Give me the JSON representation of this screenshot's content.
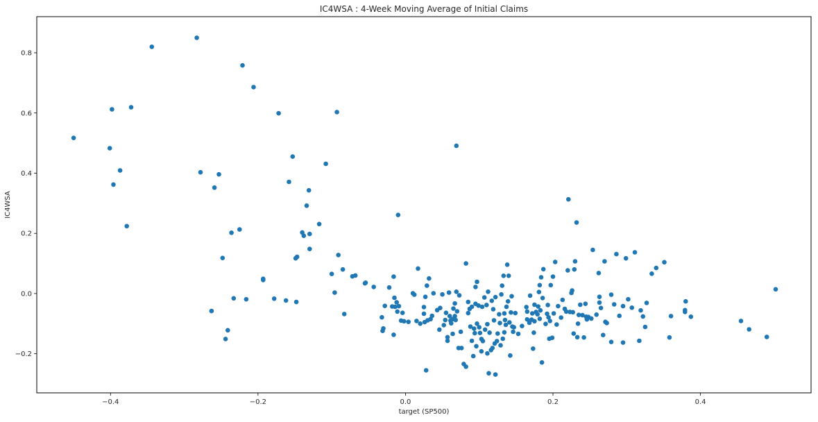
{
  "chart_data": {
    "type": "scatter",
    "title": "IC4WSA :  4-Week Moving Average of Initial Claims",
    "xlabel": "target (SP500)",
    "ylabel": "IC4WSA",
    "xlim": [
      -0.5,
      0.55
    ],
    "ylim": [
      -0.33,
      0.92
    ],
    "x_ticks": [
      -0.4,
      -0.2,
      0.0,
      0.2,
      0.4
    ],
    "x_tick_labels": [
      "−0.4",
      "−0.2",
      "0.0",
      "0.2",
      "0.4"
    ],
    "y_ticks": [
      -0.2,
      0.0,
      0.2,
      0.4,
      0.6,
      0.8
    ],
    "y_tick_labels": [
      "−0.2",
      "0.0",
      "0.2",
      "0.4",
      "0.6",
      "0.8"
    ],
    "grid": false,
    "legend": "none",
    "marker_color": "#1f77b4",
    "points": [
      [
        -0.45,
        0.517
      ],
      [
        -0.401,
        0.483
      ],
      [
        -0.398,
        0.612
      ],
      [
        -0.396,
        0.362
      ],
      [
        -0.387,
        0.409
      ],
      [
        -0.378,
        0.224
      ],
      [
        -0.372,
        0.619
      ],
      [
        -0.344,
        0.82
      ],
      [
        -0.283,
        0.85
      ],
      [
        -0.278,
        0.403
      ],
      [
        -0.259,
        0.352
      ],
      [
        -0.253,
        0.396
      ],
      [
        -0.248,
        0.118
      ],
      [
        -0.244,
        -0.151
      ],
      [
        -0.241,
        -0.122
      ],
      [
        -0.236,
        0.202
      ],
      [
        -0.233,
        -0.016
      ],
      [
        -0.263,
        -0.058
      ],
      [
        -0.225,
        0.213
      ],
      [
        -0.221,
        0.758
      ],
      [
        -0.216,
        -0.019
      ],
      [
        -0.206,
        0.686
      ],
      [
        -0.193,
        0.049
      ],
      [
        -0.193,
        0.045
      ],
      [
        -0.178,
        -0.017
      ],
      [
        -0.172,
        0.599
      ],
      [
        -0.162,
        -0.023
      ],
      [
        -0.158,
        0.371
      ],
      [
        -0.153,
        0.455
      ],
      [
        -0.149,
        0.117
      ],
      [
        -0.147,
        0.122
      ],
      [
        -0.148,
        -0.028
      ],
      [
        -0.14,
        0.203
      ],
      [
        -0.138,
        0.192
      ],
      [
        -0.134,
        0.292
      ],
      [
        -0.131,
        0.343
      ],
      [
        -0.13,
        0.198
      ],
      [
        -0.13,
        0.148
      ],
      [
        -0.117,
        0.231
      ],
      [
        -0.108,
        0.431
      ],
      [
        -0.1,
        0.065
      ],
      [
        -0.096,
        0.003
      ],
      [
        -0.093,
        0.603
      ],
      [
        -0.091,
        0.128
      ],
      [
        -0.085,
        0.08
      ],
      [
        -0.083,
        -0.068
      ],
      [
        -0.072,
        0.057
      ],
      [
        -0.068,
        0.06
      ],
      [
        -0.055,
        0.034
      ],
      [
        -0.054,
        0.036
      ],
      [
        -0.043,
        0.022
      ],
      [
        -0.032,
        -0.079
      ],
      [
        -0.03,
        -0.116
      ],
      [
        -0.031,
        -0.124
      ],
      [
        -0.028,
        -0.041
      ],
      [
        -0.022,
        0.02
      ],
      [
        -0.018,
        -0.043
      ],
      [
        -0.016,
        0.056
      ],
      [
        -0.016,
        -0.137
      ],
      [
        -0.015,
        -0.014
      ],
      [
        -0.014,
        -0.044
      ],
      [
        -0.012,
        -0.029
      ],
      [
        -0.011,
        -0.06
      ],
      [
        -0.01,
        0.261
      ],
      [
        -0.009,
        -0.042
      ],
      [
        -0.006,
        -0.09
      ],
      [
        -0.004,
        -0.064
      ],
      [
        -0.002,
        -0.092
      ],
      [
        0.004,
        -0.094
      ],
      [
        0.01,
        0.001
      ],
      [
        0.012,
        -0.004
      ],
      [
        0.015,
        -0.091
      ],
      [
        0.017,
        0.083
      ],
      [
        0.02,
        -0.1
      ],
      [
        0.025,
        -0.045
      ],
      [
        0.025,
        -0.067
      ],
      [
        0.026,
        -0.095
      ],
      [
        0.027,
        -0.011
      ],
      [
        0.029,
        0.026
      ],
      [
        0.028,
        -0.255
      ],
      [
        0.03,
        -0.089
      ],
      [
        0.032,
        0.05
      ],
      [
        0.034,
        -0.085
      ],
      [
        0.036,
        -0.074
      ],
      [
        0.038,
        0.001
      ],
      [
        0.043,
        -0.055
      ],
      [
        0.046,
        -0.12
      ],
      [
        0.047,
        -0.048
      ],
      [
        0.05,
        -0.003
      ],
      [
        0.052,
        -0.105
      ],
      [
        0.054,
        -0.088
      ],
      [
        0.055,
        -0.064
      ],
      [
        0.057,
        -0.157
      ],
      [
        0.057,
        -0.145
      ],
      [
        0.059,
        0.003
      ],
      [
        0.06,
        -0.075
      ],
      [
        0.061,
        -0.09
      ],
      [
        0.062,
        -0.099
      ],
      [
        0.064,
        -0.085
      ],
      [
        0.064,
        -0.134
      ],
      [
        0.065,
        -0.05
      ],
      [
        0.067,
        -0.033
      ],
      [
        0.067,
        -0.075
      ],
      [
        0.068,
        -0.088
      ],
      [
        0.069,
        0.006
      ],
      [
        0.069,
        0.491
      ],
      [
        0.07,
        -0.059
      ],
      [
        0.072,
        -0.181
      ],
      [
        0.073,
        -0.006
      ],
      [
        0.075,
        -0.127
      ],
      [
        0.076,
        -0.181
      ],
      [
        0.079,
        -0.234
      ],
      [
        0.082,
        -0.243
      ],
      [
        0.082,
        0.1
      ],
      [
        0.085,
        -0.028
      ],
      [
        0.085,
        -0.065
      ],
      [
        0.087,
        -0.051
      ],
      [
        0.088,
        -0.11
      ],
      [
        0.09,
        -0.157
      ],
      [
        0.09,
        -0.044
      ],
      [
        0.092,
        -0.208
      ],
      [
        0.093,
        -0.117
      ],
      [
        0.094,
        -0.132
      ],
      [
        0.095,
        -0.034
      ],
      [
        0.095,
        0.022
      ],
      [
        0.096,
        -0.175
      ],
      [
        0.097,
        0.039
      ],
      [
        0.097,
        -0.1
      ],
      [
        0.099,
        -0.04
      ],
      [
        0.1,
        -0.112
      ],
      [
        0.101,
        -0.131
      ],
      [
        0.103,
        -0.192
      ],
      [
        0.103,
        -0.151
      ],
      [
        0.104,
        -0.044
      ],
      [
        0.105,
        -0.158
      ],
      [
        0.107,
        -0.013
      ],
      [
        0.108,
        -0.12
      ],
      [
        0.11,
        -0.038
      ],
      [
        0.111,
        -0.102
      ],
      [
        0.111,
        -0.199
      ],
      [
        0.112,
        0.006
      ],
      [
        0.113,
        -0.265
      ],
      [
        0.114,
        -0.13
      ],
      [
        0.116,
        -0.188
      ],
      [
        0.117,
        -0.024
      ],
      [
        0.118,
        -0.181
      ],
      [
        0.119,
        -0.052
      ],
      [
        0.12,
        -0.089
      ],
      [
        0.121,
        -0.166
      ],
      [
        0.122,
        -0.269
      ],
      [
        0.122,
        -0.012
      ],
      [
        0.124,
        -0.158
      ],
      [
        0.125,
        -0.133
      ],
      [
        0.127,
        -0.069
      ],
      [
        0.128,
        -0.098
      ],
      [
        0.129,
        -0.172
      ],
      [
        0.13,
        -0.003
      ],
      [
        0.131,
        0.026
      ],
      [
        0.132,
        -0.15
      ],
      [
        0.133,
        0.059
      ],
      [
        0.134,
        -0.129
      ],
      [
        0.134,
        -0.066
      ],
      [
        0.135,
        -0.088
      ],
      [
        0.136,
        -0.104
      ],
      [
        0.137,
        -0.044
      ],
      [
        0.138,
        0.096
      ],
      [
        0.139,
        -0.026
      ],
      [
        0.14,
        0.059
      ],
      [
        0.141,
        -0.096
      ],
      [
        0.142,
        -0.206
      ],
      [
        0.143,
        -0.063
      ],
      [
        0.144,
        -0.009
      ],
      [
        0.145,
        -0.11
      ],
      [
        0.146,
        -0.127
      ],
      [
        0.147,
        -0.112
      ],
      [
        0.149,
        -0.065
      ],
      [
        0.153,
        -0.134
      ],
      [
        0.158,
        -0.108
      ],
      [
        0.164,
        -0.045
      ],
      [
        0.165,
        -0.06
      ],
      [
        0.165,
        -0.086
      ],
      [
        0.168,
        -0.097
      ],
      [
        0.169,
        -0.007
      ],
      [
        0.171,
        -0.087
      ],
      [
        0.172,
        -0.066
      ],
      [
        0.173,
        -0.183
      ],
      [
        0.174,
        -0.13
      ],
      [
        0.175,
        -0.037
      ],
      [
        0.175,
        -0.092
      ],
      [
        0.177,
        -0.061
      ],
      [
        0.179,
        -0.069
      ],
      [
        0.18,
        -0.043
      ],
      [
        0.181,
        0.005
      ],
      [
        0.182,
        -0.084
      ],
      [
        0.182,
        0.028
      ],
      [
        0.183,
        -0.056
      ],
      [
        0.184,
        0.054
      ],
      [
        0.185,
        -0.229
      ],
      [
        0.186,
        -0.015
      ],
      [
        0.187,
        0.081
      ],
      [
        0.19,
        -0.101
      ],
      [
        0.192,
        -0.067
      ],
      [
        0.193,
        -0.038
      ],
      [
        0.194,
        -0.079
      ],
      [
        0.195,
        -0.15
      ],
      [
        0.196,
        -0.091
      ],
      [
        0.197,
        0.028
      ],
      [
        0.199,
        -0.147
      ],
      [
        0.2,
        0.056
      ],
      [
        0.201,
        -0.066
      ],
      [
        0.203,
        0.105
      ],
      [
        0.205,
        -0.103
      ],
      [
        0.207,
        -0.042
      ],
      [
        0.211,
        -0.08
      ],
      [
        0.213,
        -0.021
      ],
      [
        0.216,
        -0.051
      ],
      [
        0.218,
        -0.06
      ],
      [
        0.22,
        0.077
      ],
      [
        0.221,
        0.313
      ],
      [
        0.223,
        -0.061
      ],
      [
        0.225,
        0.002
      ],
      [
        0.226,
        0.01
      ],
      [
        0.227,
        -0.062
      ],
      [
        0.228,
        -0.133
      ],
      [
        0.229,
        0.08
      ],
      [
        0.23,
        0.107
      ],
      [
        0.232,
        0.236
      ],
      [
        0.233,
        -0.145
      ],
      [
        0.234,
        -0.1
      ],
      [
        0.235,
        -0.071
      ],
      [
        0.237,
        -0.037
      ],
      [
        0.24,
        -0.072
      ],
      [
        0.242,
        -0.146
      ],
      [
        0.244,
        -0.034
      ],
      [
        0.245,
        -0.077
      ],
      [
        0.246,
        -0.086
      ],
      [
        0.248,
        -0.078
      ],
      [
        0.252,
        -0.083
      ],
      [
        0.254,
        0.145
      ],
      [
        0.259,
        -0.07
      ],
      [
        0.262,
        0.068
      ],
      [
        0.263,
        -0.011
      ],
      [
        0.263,
        -0.03
      ],
      [
        0.265,
        -0.048
      ],
      [
        0.268,
        -0.138
      ],
      [
        0.27,
        0.107
      ],
      [
        0.271,
        -0.094
      ],
      [
        0.273,
        -0.098
      ],
      [
        0.279,
        -0.004
      ],
      [
        0.279,
        -0.161
      ],
      [
        0.283,
        -0.036
      ],
      [
        0.286,
        0.131
      ],
      [
        0.29,
        -0.074
      ],
      [
        0.295,
        -0.163
      ],
      [
        0.295,
        -0.042
      ],
      [
        0.299,
        0.117
      ],
      [
        0.302,
        -0.019
      ],
      [
        0.307,
        -0.047
      ],
      [
        0.311,
        0.137
      ],
      [
        0.317,
        -0.157
      ],
      [
        0.319,
        -0.056
      ],
      [
        0.322,
        -0.076
      ],
      [
        0.325,
        -0.111
      ],
      [
        0.327,
        -0.031
      ],
      [
        0.334,
        0.066
      ],
      [
        0.34,
        0.085
      ],
      [
        0.351,
        0.104
      ],
      [
        0.358,
        -0.146
      ],
      [
        0.36,
        -0.075
      ],
      [
        0.379,
        -0.055
      ],
      [
        0.379,
        -0.061
      ],
      [
        0.38,
        -0.026
      ],
      [
        0.387,
        -0.077
      ],
      [
        0.455,
        -0.091
      ],
      [
        0.466,
        -0.119
      ],
      [
        0.49,
        -0.144
      ],
      [
        0.502,
        0.014
      ]
    ]
  }
}
